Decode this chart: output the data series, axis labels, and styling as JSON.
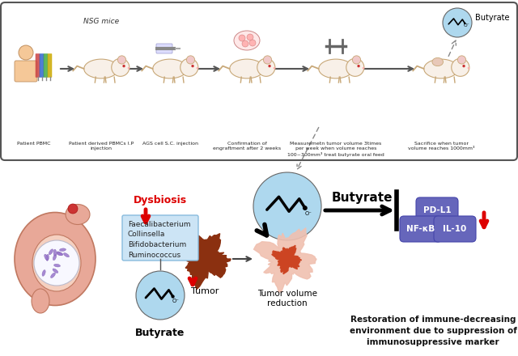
{
  "bg_color": "#ffffff",
  "butyrate_circle_color": "#aed8ee",
  "red_color": "#dd0000",
  "bacteria_box_color": "#cce4f5",
  "bacteria_box_border": "#88bbdd",
  "marker_color": "#6666bb",
  "top_labels": [
    "Patient PBMC",
    "Patient derived PBMCs I.P\ninjection",
    "AGS cell S.C. injection",
    "Confirmation of\nengraftment after 2 weeks",
    "Measuremetn tumor volume 3times\nper week when volume reaches\n100~300mm³ treat butyrate oral feed",
    "Sacrifice when tumor\nvolume reaches 1000mm³"
  ],
  "nsg_label": "NSG mice",
  "bacteria_list": "Faecalibacterium\nCollinsella\nBifidobacterium\nRuminococcus",
  "bottom_text": "Restoration of immune-decreasing\nenvironment due to suppression of\nimmunosuppressive marker",
  "butyrate_label": "Butyrate",
  "tumor_label": "Tumor",
  "tumor_vol_label": "Tumor volume\nreduction",
  "dysbiosis_label": "Dysbiosis"
}
